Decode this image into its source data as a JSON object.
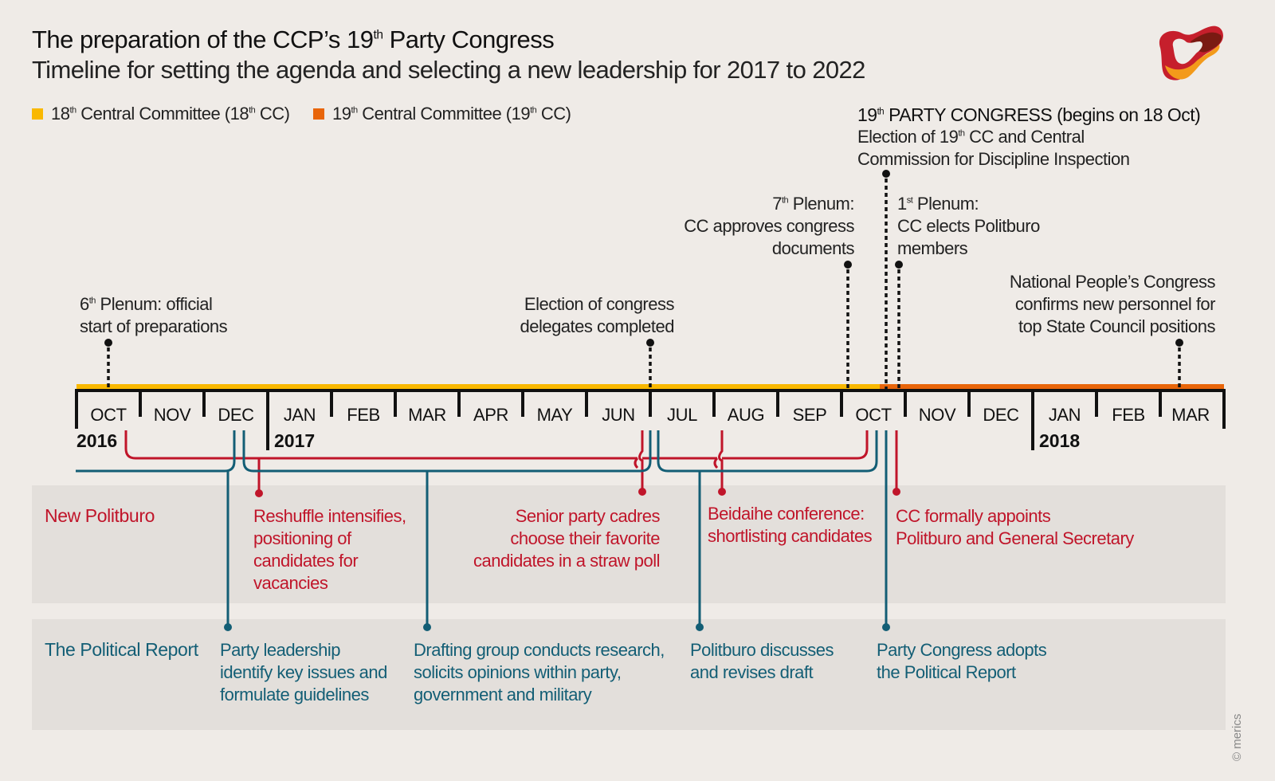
{
  "header": {
    "title_pre": "The preparation of the CCP’s 19",
    "title_sup": "th",
    "title_post": " Party Congress",
    "subtitle": "Timeline for setting the agenda and selecting a new leadership for 2017 to 2022",
    "logo_icon": "merics-logo-icon"
  },
  "legend": [
    {
      "num": "18",
      "sup": "th",
      "text_mid": " Central Committee (18",
      "sup2": "th",
      "text_end": " CC)",
      "color": "#f9b800"
    },
    {
      "num": "19",
      "sup": "th",
      "text_mid": " Central Committee (19",
      "sup2": "th",
      "text_end": " CC)",
      "color": "#e8650a"
    }
  ],
  "colors": {
    "cc18": "#f9b800",
    "cc19": "#e8650a",
    "politburo": "#c0152a",
    "report": "#135e75",
    "axis": "#111111"
  },
  "timeline": {
    "months": [
      "OCT",
      "NOV",
      "DEC",
      "JAN",
      "FEB",
      "MAR",
      "APR",
      "MAY",
      "JUN",
      "JUL",
      "AUG",
      "SEP",
      "OCT",
      "NOV",
      "DEC",
      "JAN",
      "FEB",
      "MAR"
    ],
    "years": [
      {
        "label": "2016",
        "month_index": 0
      },
      {
        "label": "2017",
        "month_index": 3
      },
      {
        "label": "2018",
        "month_index": 15
      }
    ],
    "cc_switch_month": 12.6
  },
  "annotations": {
    "plenum6": {
      "line1_num": "6",
      "line1_sup": "th",
      "line1_rest": " Plenum: official",
      "line2": "start of preparations",
      "month": 0.5
    },
    "delegates": {
      "line1": "Election of congress",
      "line2": "delegates completed",
      "month": 9.0
    },
    "plenum7": {
      "line1_num": "7",
      "line1_sup": "th",
      "line1_rest": " Plenum:",
      "line2": "CC approves congress",
      "line3": "documents",
      "month": 12.1
    },
    "congress": {
      "line1_num": "19",
      "line1_sup": "th",
      "line1_rest": " PARTY CONGRESS (begins on 18 Oct)",
      "line2_pre": "Election of 19",
      "line2_sup": "th",
      "line2_post": " CC and Central",
      "line3": "Commission for Discipline Inspection",
      "month": 12.7
    },
    "plenum1": {
      "line1_num": "1",
      "line1_sup": "st",
      "line1_rest": " Plenum:",
      "line2": "CC elects Politburo",
      "line3": "members",
      "month": 12.9
    },
    "npc": {
      "line1": "National People’s Congress",
      "line2": "confirms new personnel for",
      "line3": "top State Council positions",
      "month": 17.3
    }
  },
  "rows": {
    "politburo": {
      "label": "New Politburo",
      "events": [
        {
          "lines": [
            "Reshuffle intensifies,",
            "positioning of",
            "candidates for",
            "vacancies"
          ]
        },
        {
          "lines": [
            "Senior party cadres",
            "choose their favorite",
            "candidates in a straw poll"
          ]
        },
        {
          "lines": [
            "Beidaihe conference:",
            "shortlisting candidates"
          ]
        },
        {
          "lines": [
            "CC formally appoints",
            "Politburo and General Secretary"
          ]
        }
      ]
    },
    "report": {
      "label": "The Political Report",
      "events": [
        {
          "lines": [
            "Party leadership",
            "identify key issues and",
            "formulate guidelines"
          ]
        },
        {
          "lines": [
            "Drafting group conducts research,",
            "solicits opinions within party,",
            "government and military"
          ]
        },
        {
          "lines": [
            "Politburo discusses",
            "and revises draft"
          ]
        },
        {
          "lines": [
            "Party Congress adopts",
            "the Political Report"
          ]
        }
      ]
    }
  },
  "copyright": "© merics"
}
